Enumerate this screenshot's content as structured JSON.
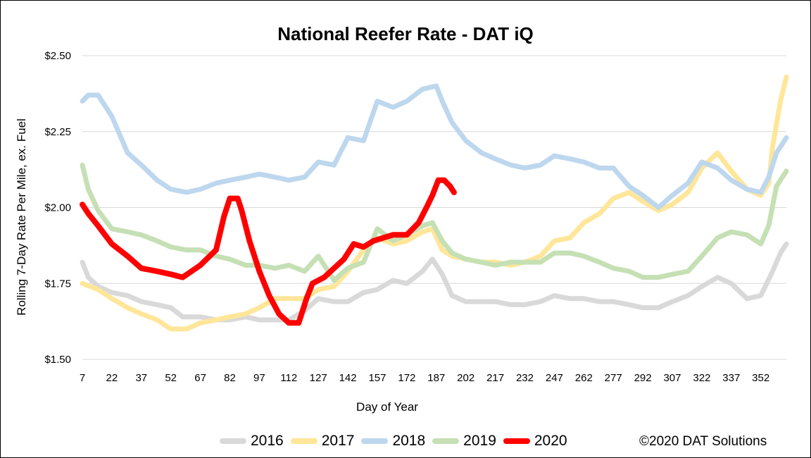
{
  "chart_data": {
    "type": "line",
    "title": "National Reefer Rate - DAT iQ",
    "xlabel": "Day of Year",
    "ylabel": "Rolling 7-Day Rate Per Mile, ex. Fuel",
    "xlim": [
      7,
      365
    ],
    "ylim": [
      1.5,
      2.5
    ],
    "x_ticks": [
      "7",
      "22",
      "37",
      "52",
      "67",
      "82",
      "97",
      "112",
      "127",
      "142",
      "157",
      "172",
      "187",
      "202",
      "217",
      "232",
      "247",
      "262",
      "277",
      "292",
      "307",
      "322",
      "337",
      "352"
    ],
    "y_ticks": [
      "$1.50",
      "$1.75",
      "$2.00",
      "$2.25",
      "$2.50"
    ],
    "grid": true,
    "legend_position": "bottom",
    "copyright": "©2020 DAT Solutions",
    "series": [
      {
        "name": "2016",
        "color": "#d9d9d9",
        "x": [
          7,
          10,
          15,
          22,
          30,
          37,
          45,
          52,
          58,
          67,
          75,
          82,
          90,
          97,
          105,
          112,
          120,
          127,
          135,
          142,
          150,
          157,
          165,
          172,
          180,
          185,
          190,
          195,
          202,
          210,
          217,
          225,
          232,
          240,
          247,
          255,
          262,
          270,
          277,
          285,
          292,
          300,
          307,
          315,
          322,
          330,
          337,
          345,
          352,
          358,
          362,
          365
        ],
        "y": [
          1.82,
          1.77,
          1.74,
          1.72,
          1.71,
          1.69,
          1.68,
          1.67,
          1.64,
          1.64,
          1.63,
          1.63,
          1.64,
          1.63,
          1.63,
          1.63,
          1.66,
          1.7,
          1.69,
          1.69,
          1.72,
          1.73,
          1.76,
          1.75,
          1.79,
          1.83,
          1.78,
          1.71,
          1.69,
          1.69,
          1.69,
          1.68,
          1.68,
          1.69,
          1.71,
          1.7,
          1.7,
          1.69,
          1.69,
          1.68,
          1.67,
          1.67,
          1.69,
          1.71,
          1.74,
          1.77,
          1.75,
          1.7,
          1.71,
          1.79,
          1.85,
          1.88
        ]
      },
      {
        "name": "2017",
        "color": "#ffe699",
        "x": [
          7,
          15,
          22,
          30,
          37,
          45,
          52,
          60,
          67,
          75,
          82,
          90,
          97,
          105,
          112,
          120,
          127,
          135,
          142,
          150,
          157,
          165,
          172,
          180,
          185,
          190,
          195,
          202,
          210,
          217,
          225,
          232,
          240,
          247,
          255,
          262,
          270,
          277,
          285,
          292,
          300,
          307,
          315,
          322,
          330,
          337,
          345,
          352,
          356,
          358,
          362,
          365
        ],
        "y": [
          1.75,
          1.73,
          1.7,
          1.67,
          1.65,
          1.63,
          1.6,
          1.6,
          1.62,
          1.63,
          1.64,
          1.65,
          1.67,
          1.7,
          1.7,
          1.7,
          1.73,
          1.74,
          1.79,
          1.86,
          1.9,
          1.88,
          1.89,
          1.92,
          1.93,
          1.86,
          1.84,
          1.83,
          1.82,
          1.82,
          1.81,
          1.82,
          1.84,
          1.89,
          1.9,
          1.95,
          1.98,
          2.03,
          2.05,
          2.02,
          1.99,
          2.01,
          2.05,
          2.13,
          2.18,
          2.12,
          2.06,
          2.04,
          2.08,
          2.2,
          2.35,
          2.43
        ]
      },
      {
        "name": "2018",
        "color": "#bdd7ee",
        "x": [
          7,
          10,
          15,
          22,
          30,
          37,
          45,
          52,
          60,
          67,
          75,
          82,
          90,
          97,
          105,
          112,
          120,
          127,
          135,
          142,
          150,
          157,
          165,
          172,
          180,
          187,
          190,
          195,
          202,
          210,
          217,
          225,
          232,
          240,
          247,
          255,
          262,
          270,
          277,
          285,
          292,
          300,
          307,
          315,
          322,
          330,
          337,
          345,
          352,
          356,
          360,
          365
        ],
        "y": [
          2.35,
          2.37,
          2.37,
          2.3,
          2.18,
          2.14,
          2.09,
          2.06,
          2.05,
          2.06,
          2.08,
          2.09,
          2.1,
          2.11,
          2.1,
          2.09,
          2.1,
          2.15,
          2.14,
          2.23,
          2.22,
          2.35,
          2.33,
          2.35,
          2.39,
          2.4,
          2.35,
          2.28,
          2.22,
          2.18,
          2.16,
          2.14,
          2.13,
          2.14,
          2.17,
          2.16,
          2.15,
          2.13,
          2.13,
          2.07,
          2.04,
          2.0,
          2.04,
          2.08,
          2.15,
          2.13,
          2.09,
          2.06,
          2.05,
          2.1,
          2.18,
          2.23
        ]
      },
      {
        "name": "2019",
        "color": "#c5e0b4",
        "x": [
          7,
          10,
          15,
          22,
          30,
          37,
          45,
          52,
          60,
          67,
          75,
          82,
          90,
          97,
          105,
          112,
          120,
          127,
          135,
          142,
          150,
          157,
          165,
          172,
          180,
          185,
          190,
          195,
          202,
          210,
          217,
          225,
          232,
          240,
          247,
          255,
          262,
          270,
          277,
          285,
          292,
          300,
          307,
          315,
          322,
          330,
          337,
          345,
          352,
          356,
          360,
          365
        ],
        "y": [
          2.14,
          2.06,
          1.99,
          1.93,
          1.92,
          1.91,
          1.89,
          1.87,
          1.86,
          1.86,
          1.84,
          1.83,
          1.81,
          1.81,
          1.8,
          1.81,
          1.79,
          1.84,
          1.76,
          1.8,
          1.82,
          1.93,
          1.89,
          1.91,
          1.94,
          1.95,
          1.89,
          1.85,
          1.83,
          1.82,
          1.81,
          1.82,
          1.82,
          1.82,
          1.85,
          1.85,
          1.84,
          1.82,
          1.8,
          1.79,
          1.77,
          1.77,
          1.78,
          1.79,
          1.84,
          1.9,
          1.92,
          1.91,
          1.88,
          1.94,
          2.07,
          2.12
        ]
      },
      {
        "name": "2020",
        "color": "#ff0000",
        "x": [
          7,
          10,
          15,
          22,
          30,
          37,
          45,
          52,
          58,
          67,
          75,
          79,
          82,
          86,
          88,
          92,
          97,
          102,
          107,
          112,
          117,
          121,
          124,
          127,
          130,
          135,
          140,
          145,
          150,
          155,
          160,
          165,
          172,
          178,
          182,
          185,
          188,
          191,
          194,
          196
        ],
        "y": [
          2.01,
          1.98,
          1.94,
          1.88,
          1.84,
          1.8,
          1.79,
          1.78,
          1.77,
          1.81,
          1.86,
          1.97,
          2.03,
          2.03,
          1.99,
          1.89,
          1.79,
          1.71,
          1.65,
          1.62,
          1.62,
          1.7,
          1.75,
          1.76,
          1.77,
          1.8,
          1.83,
          1.88,
          1.87,
          1.89,
          1.9,
          1.91,
          1.91,
          1.95,
          2.0,
          2.04,
          2.09,
          2.09,
          2.07,
          2.05
        ]
      }
    ]
  }
}
